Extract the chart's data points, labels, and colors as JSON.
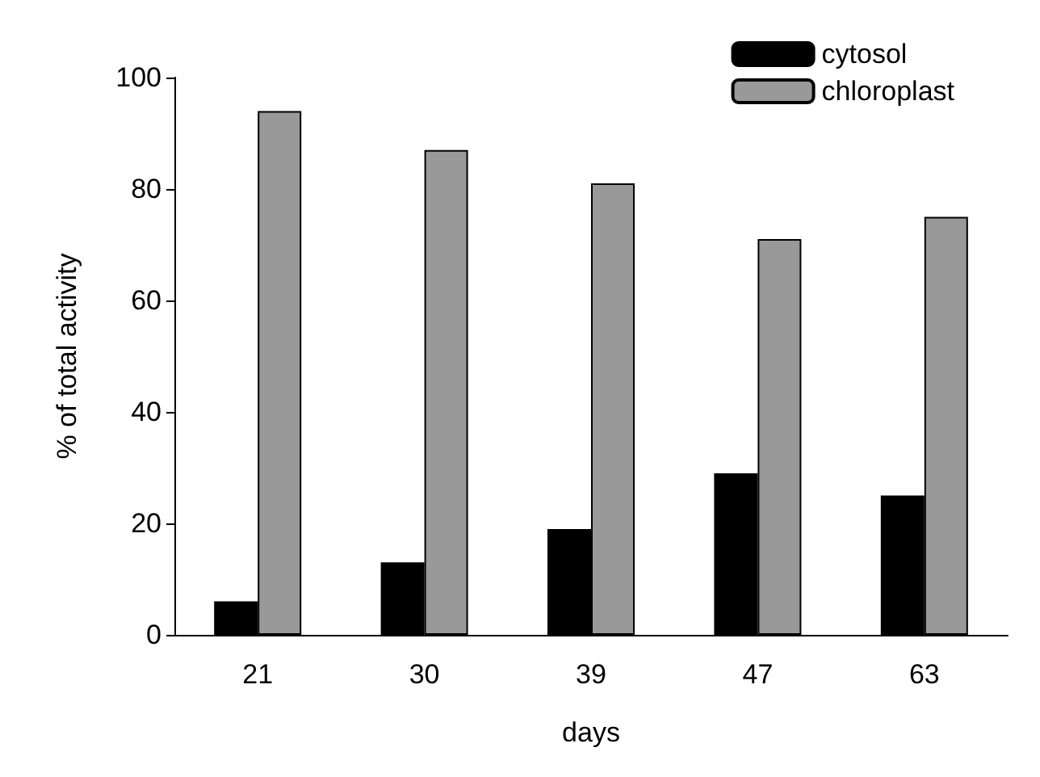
{
  "chart_data": {
    "type": "bar",
    "xlabel": "days",
    "ylabel": "% of total activity",
    "categories": [
      "21",
      "30",
      "39",
      "47",
      "63"
    ],
    "series": [
      {
        "name": "cytosol",
        "color": "#000000",
        "values": [
          6,
          13,
          19,
          29,
          25
        ]
      },
      {
        "name": "chloroplast",
        "color": "#999999",
        "values": [
          94,
          87,
          81,
          71,
          75
        ]
      }
    ],
    "ylim": [
      0,
      100
    ],
    "yticks": [
      0,
      20,
      40,
      60,
      80,
      100
    ],
    "grid": false,
    "legend": "top right"
  }
}
